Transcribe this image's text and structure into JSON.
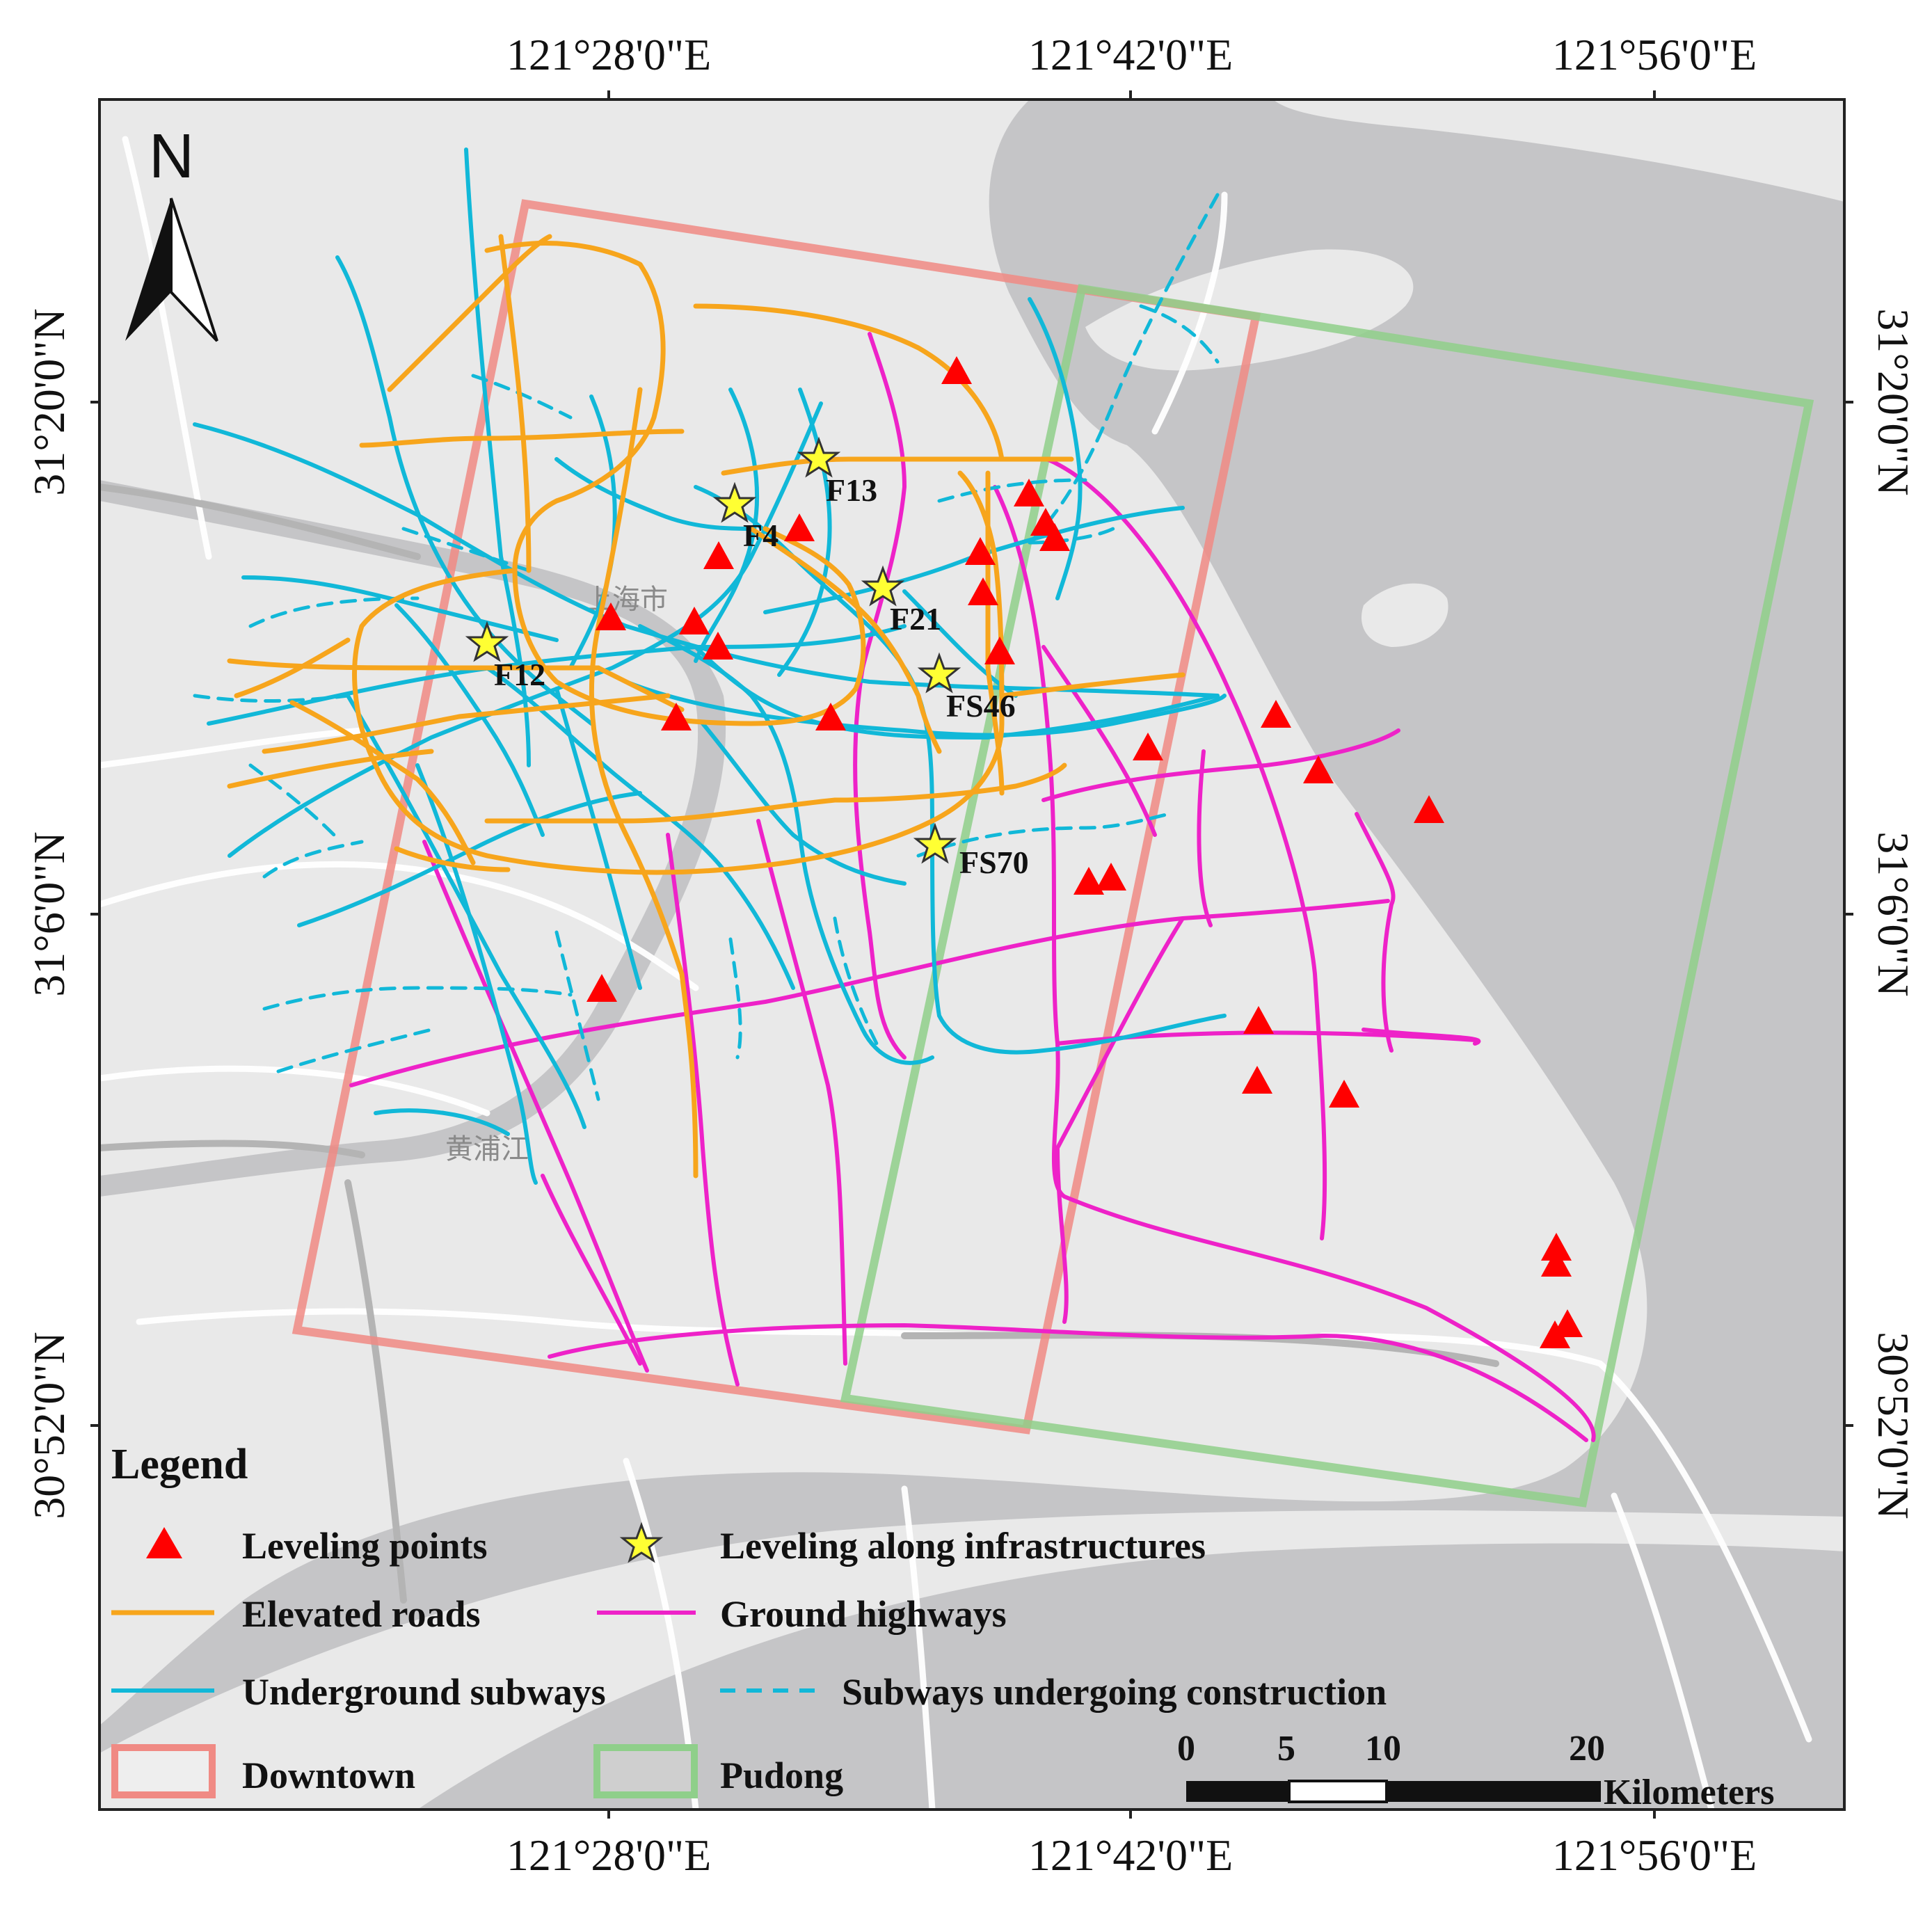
{
  "map": {
    "graticule": {
      "top": [
        "121°28'0\"E",
        "121°42'0\"E",
        "121°56'0\"E"
      ],
      "bottom": [
        "121°28'0\"E",
        "121°42'0\"E",
        "121°56'0\"E"
      ],
      "left": [
        "31°20'0\"N",
        "31°6'0\"N",
        "30°52'0\"N"
      ],
      "right": [
        "31°20'0\"N",
        "31°6'0\"N",
        "30°52'0\"N"
      ]
    },
    "north_arrow_label": "N",
    "place_labels": [
      "上海市",
      "黄浦江"
    ],
    "infrastructure_sites": [
      "F13",
      "F4",
      "F21",
      "F12",
      "FS46",
      "FS70"
    ],
    "colors": {
      "water": "#c5c5c7",
      "land": "#e9e9e9",
      "leveling_points": "#ff0000",
      "infrastructure_star": "#ffff33",
      "elevated_roads": "#f7a51c",
      "ground_highways": "#ee22c8",
      "underground_subways": "#11b8d8",
      "subways_construction": "#11b8d8",
      "downtown_box": "#f08a84",
      "pudong_box": "#8fcf8a"
    }
  },
  "legend": {
    "title": "Legend",
    "leveling_points": "Leveling points",
    "leveling_infra": "Leveling along infrastructures",
    "elevated_roads": "Elevated roads",
    "ground_highways": "Ground highways",
    "underground_subways": "Underground subways",
    "subways_construction": "Subways undergoing construction",
    "downtown": "Downtown",
    "pudong": "Pudong"
  },
  "scale_bar": {
    "ticks": [
      "0",
      "5",
      "10",
      "20"
    ],
    "unit": "Kilometers"
  }
}
